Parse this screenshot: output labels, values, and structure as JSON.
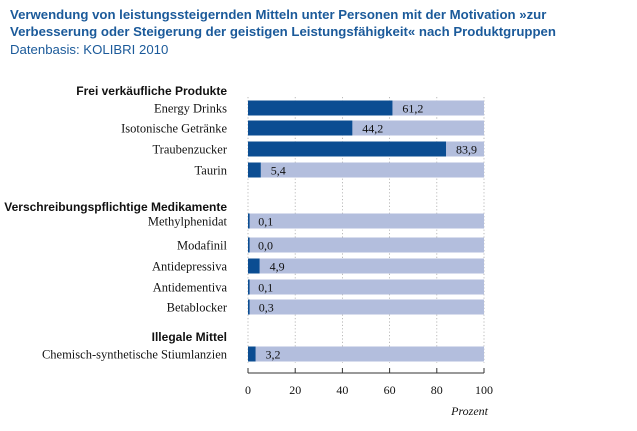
{
  "chart_data": {
    "type": "bar",
    "orientation": "horizontal",
    "title": "Verwendung von leistungssteigernden Mitteln unter Personen mit der Motivation »zur Verbesserung oder Steigerung der geistigen Leistungsfähigkeit« nach Produktgruppen",
    "subtitle": "Datenbasis: KOLIBRI 2010",
    "xlabel": "Prozent",
    "xlim": [
      0,
      100
    ],
    "xticks": [
      "0",
      "20",
      "40",
      "60",
      "80",
      "100"
    ],
    "grid": true,
    "colors": {
      "value": "#0b4d92",
      "track": "#b3bedd",
      "grid": "#aaaaaa",
      "title": "#1b5a9a"
    },
    "groups": [
      {
        "name": "Frei verkäufliche Produkte",
        "items": [
          {
            "category": "Energy Drinks",
            "value": 61.2,
            "label": "61,2"
          },
          {
            "category": "Isotonische Getränke",
            "value": 44.2,
            "label": "44,2"
          },
          {
            "category": "Traubenzucker",
            "value": 83.9,
            "label": "83,9"
          },
          {
            "category": "Taurin",
            "value": 5.4,
            "label": "5,4"
          }
        ]
      },
      {
        "name": "Verschreibungspflichtige Medikamente",
        "items": [
          {
            "category": "Methylphenidat",
            "value": 0.1,
            "label": "0,1"
          },
          {
            "category": "Modafinil",
            "value": 0.0,
            "label": "0,0"
          },
          {
            "category": "Antidepressiva",
            "value": 4.9,
            "label": "4,9"
          },
          {
            "category": "Antidementiva",
            "value": 0.1,
            "label": "0,1"
          },
          {
            "category": "Betablocker",
            "value": 0.3,
            "label": "0,3"
          }
        ]
      },
      {
        "name": "Illegale Mittel",
        "items": [
          {
            "category": "Chemisch-synthetische Stiumlanzien",
            "value": 3.2,
            "label": "3,2"
          }
        ]
      }
    ]
  }
}
